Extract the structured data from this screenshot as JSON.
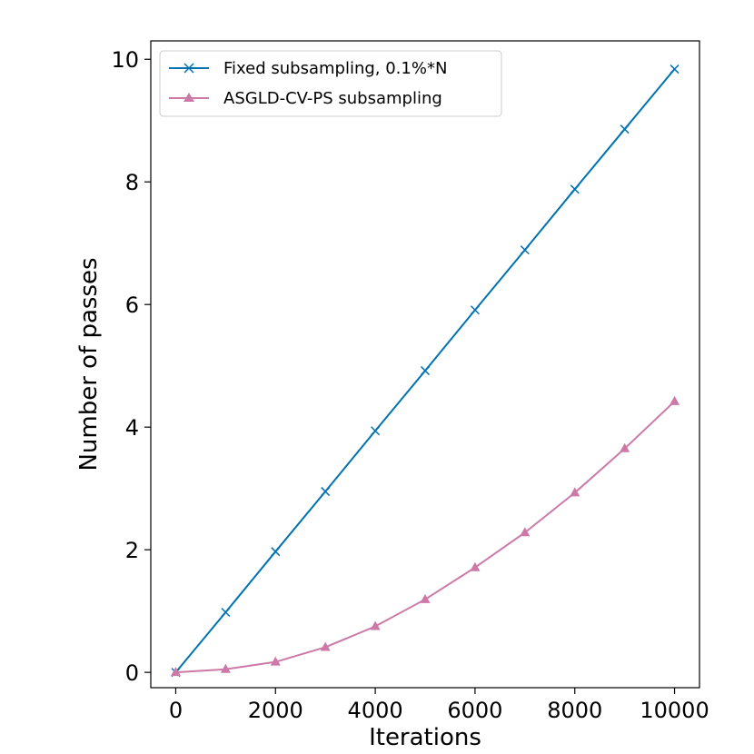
{
  "chart_data": {
    "type": "line",
    "title": "",
    "xlabel": "Iterations",
    "ylabel": "Number of passes",
    "xlim": [
      -500,
      10500
    ],
    "ylim": [
      -0.25,
      10.3
    ],
    "xticks": [
      0,
      2000,
      4000,
      6000,
      8000,
      10000
    ],
    "yticks": [
      0,
      2,
      4,
      6,
      8,
      10
    ],
    "grid": false,
    "legend_position": "top-left",
    "x": [
      0,
      1000,
      2000,
      3000,
      4000,
      5000,
      6000,
      7000,
      8000,
      9000,
      10000
    ],
    "series": [
      {
        "name": "Fixed subsampling, 0.1%*N",
        "color": "#0072b2",
        "marker": "x",
        "values": [
          0,
          0.98,
          1.97,
          2.95,
          3.94,
          4.92,
          5.91,
          6.89,
          7.88,
          8.86,
          9.84
        ]
      },
      {
        "name": "ASGLD-CV-PS subsampling",
        "color": "#cc79a7",
        "marker": "triangle",
        "values": [
          0,
          0.05,
          0.17,
          0.41,
          0.75,
          1.19,
          1.71,
          2.28,
          2.93,
          3.65,
          4.42
        ]
      }
    ]
  }
}
